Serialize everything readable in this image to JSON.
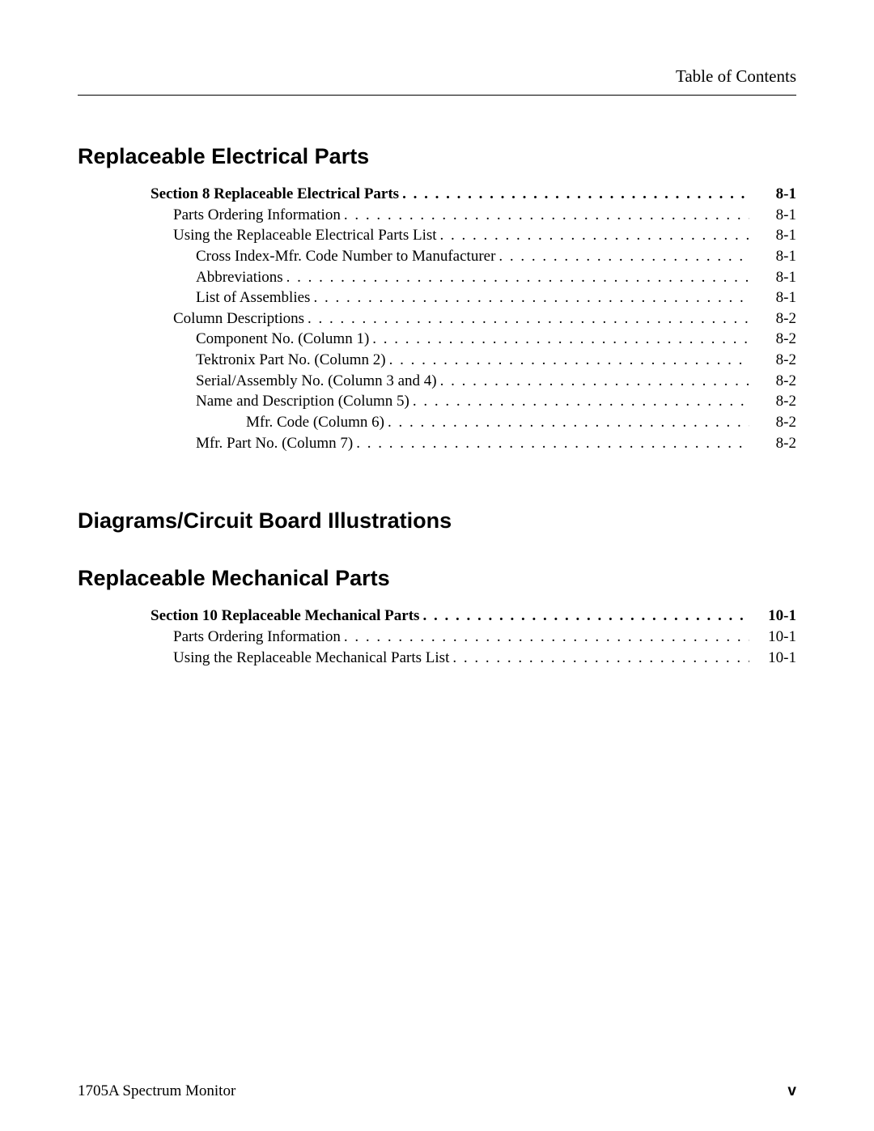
{
  "header": {
    "right_text": "Table of Contents"
  },
  "sections": {
    "electrical": {
      "title": "Replaceable Electrical Parts",
      "entries": [
        {
          "label": "Section 8 Replaceable Electrical Parts",
          "page": "8-1",
          "indent": 0,
          "bold": true
        },
        {
          "label": "Parts Ordering Information",
          "page": "8-1",
          "indent": 1,
          "bold": false
        },
        {
          "label": "Using the Replaceable Electrical Parts List",
          "page": "8-1",
          "indent": 1,
          "bold": false
        },
        {
          "label": "Cross Index-Mfr. Code Number to Manufacturer",
          "page": "8-1",
          "indent": 2,
          "bold": false
        },
        {
          "label": "Abbreviations",
          "page": "8-1",
          "indent": 2,
          "bold": false
        },
        {
          "label": "List of Assemblies",
          "page": "8-1",
          "indent": 2,
          "bold": false
        },
        {
          "label": "Column Descriptions",
          "page": "8-2",
          "indent": 1,
          "bold": false
        },
        {
          "label": "Component No. (Column 1)",
          "page": "8-2",
          "indent": 2,
          "bold": false
        },
        {
          "label": "Tektronix Part No. (Column 2)",
          "page": "8-2",
          "indent": 2,
          "bold": false
        },
        {
          "label": "Serial/Assembly No. (Column 3 and 4)",
          "page": "8-2",
          "indent": 2,
          "bold": false
        },
        {
          "label": "Name and Description (Column 5)",
          "page": "8-2",
          "indent": 2,
          "bold": false
        },
        {
          "label": "Mfr. Code (Column 6)",
          "page": "8-2",
          "indent": 3,
          "bold": false
        },
        {
          "label": "Mfr. Part No. (Column 7)",
          "page": "8-2",
          "indent": 2,
          "bold": false
        }
      ]
    },
    "diagrams": {
      "title": "Diagrams/Circuit Board Illustrations"
    },
    "mechanical": {
      "title": "Replaceable Mechanical Parts",
      "entries": [
        {
          "label": "Section 10 Replaceable Mechanical Parts",
          "page": "10-1",
          "indent": 0,
          "bold": true
        },
        {
          "label": "Parts Ordering Information",
          "page": "10-1",
          "indent": 1,
          "bold": false
        },
        {
          "label": "Using the Replaceable Mechanical Parts List",
          "page": "10-1",
          "indent": 1,
          "bold": false
        }
      ]
    }
  },
  "footer": {
    "left": "1705A Spectrum Monitor",
    "right": "v"
  },
  "style": {
    "text_color": "#000000",
    "background_color": "#ffffff",
    "title_font": "Arial",
    "body_font": "Times New Roman",
    "title_fontsize_pt": 20,
    "body_fontsize_pt": 14
  }
}
